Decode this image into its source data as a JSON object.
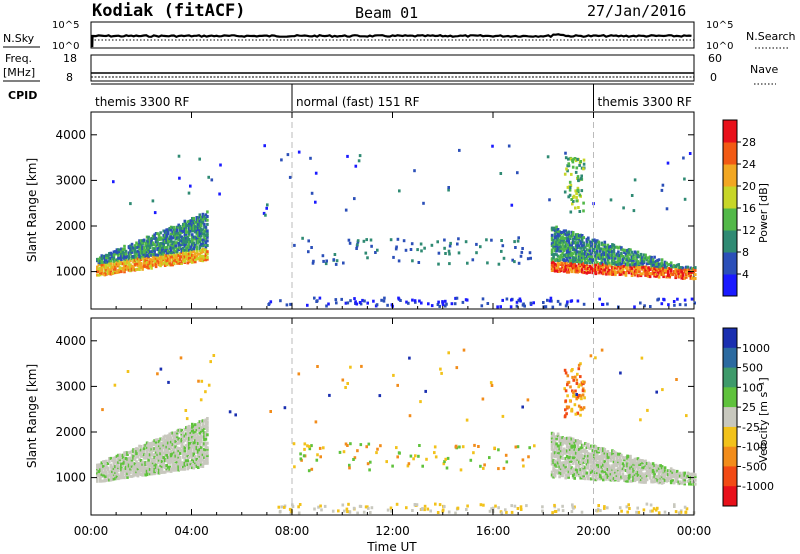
{
  "header": {
    "station": "Kodiak (fitACF)",
    "beam": "Beam 01",
    "date": "27/Jan/2016"
  },
  "top_panel": {
    "left_label": "N.Sky",
    "right_label": "N.Search",
    "left_ticks": [
      "10^5",
      "10^0"
    ],
    "right_ticks": [
      "10^5",
      "10^0"
    ]
  },
  "freq_panel": {
    "left_label_1": "Freq.",
    "left_label_2": "[MHz]",
    "left_ticks": [
      "18",
      "8"
    ],
    "right_label": "Nave",
    "right_ticks": [
      "60",
      "0"
    ]
  },
  "cpid": {
    "label": "CPID",
    "segments": [
      {
        "start_hour": 0,
        "end_hour": 8,
        "text": "themis 3300 RF"
      },
      {
        "start_hour": 8,
        "end_hour": 20,
        "text": "normal (fast) 151 RF"
      },
      {
        "start_hour": 20,
        "end_hour": 24,
        "text": "themis 3300 RF"
      }
    ]
  },
  "x_axis": {
    "label": "Time UT",
    "ticks": [
      "00:00",
      "04:00",
      "08:00",
      "12:00",
      "16:00",
      "20:00",
      "00:00"
    ],
    "tick_hours": [
      0,
      4,
      8,
      12,
      16,
      20,
      24
    ],
    "range_hours": [
      0,
      24
    ]
  },
  "power_panel": {
    "ylabel": "Slant Range [km]",
    "yticks": [
      "4000",
      "3000",
      "2000",
      "1000"
    ],
    "ytick_values": [
      4000,
      3000,
      2000,
      1000
    ],
    "yrange": [
      180,
      4500
    ],
    "colorbar": {
      "label": "Power [dB]",
      "ticks": [
        "28",
        "24",
        "20",
        "16",
        "12",
        "8",
        "4"
      ],
      "colors": [
        "#1a1aff",
        "#2b4fb8",
        "#2f8a73",
        "#52b848",
        "#c7d628",
        "#f2a722",
        "#f25a14",
        "#e8101a"
      ]
    }
  },
  "velocity_panel": {
    "ylabel": "Slant Range [km]",
    "yticks": [
      "4000",
      "3000",
      "2000",
      "1000"
    ],
    "ytick_values": [
      4000,
      3000,
      2000,
      1000
    ],
    "yrange": [
      180,
      4500
    ],
    "colorbar": {
      "label": "Velocity [m s⁻¹]",
      "ticks": [
        "1000",
        "500",
        "100",
        "25",
        "-25",
        "-100",
        "-500",
        "-1000"
      ],
      "colors": [
        "#1a2fb0",
        "#2b6aa0",
        "#3e9a6a",
        "#5fc23c",
        "#c8c8be",
        "#f2c21a",
        "#f28c1a",
        "#f24a14",
        "#e8101a"
      ]
    }
  },
  "chart_data": {
    "type": "heatmap",
    "x": "Time UT (hours)",
    "y": "Slant Range [km]",
    "features": [
      {
        "name": "early band",
        "t_start": 0.2,
        "t_end": 4.6,
        "range_start_km": 850,
        "range_end_km": 2200
      },
      {
        "name": "mid patches",
        "t_start": 8.0,
        "t_end": 17.5,
        "range_km": [
          1200,
          1700
        ]
      },
      {
        "name": "late band",
        "t_start": 18.2,
        "t_end": 24.0,
        "range_start_km": 2000,
        "range_end_km": 850
      },
      {
        "name": "far echoes",
        "t_start": 18.8,
        "t_end": 19.6,
        "range_km": [
          2300,
          3500
        ]
      }
    ]
  }
}
